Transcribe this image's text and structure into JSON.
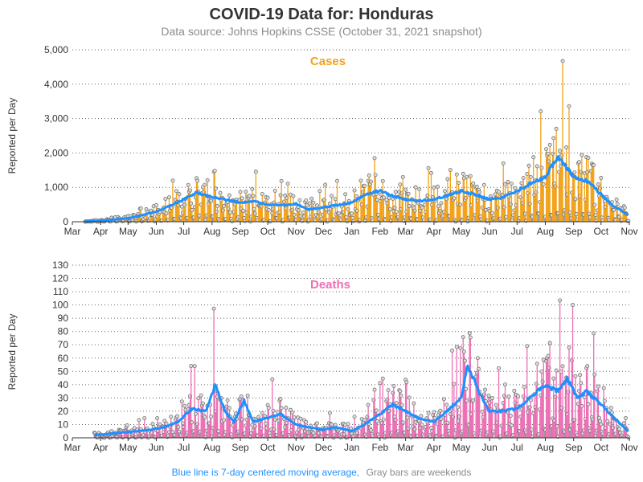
{
  "title": "COVID-19 Data for: Honduras",
  "subtitle": "Data source: Johns Hopkins CSSE (October 31, 2021 snapshot)",
  "footer": {
    "moving_average_note": "Blue line is 7-day centered moving average,",
    "weekend_note": "Gray bars are weekends"
  },
  "colors": {
    "cases": "#f2a21a",
    "deaths": "#ec6fb4",
    "moving_average": "#1e90ff",
    "weekend": "#999999"
  },
  "chart_data": [
    {
      "type": "bar",
      "panel_label": "Cases",
      "ylabel": "Reported per Day",
      "ylim": [
        0,
        5000
      ],
      "yticks": [
        "0",
        "1,000",
        "2,000",
        "3,000",
        "4,000",
        "5,000"
      ],
      "ytick_values": [
        0,
        1000,
        2000,
        3000,
        4000,
        5000
      ],
      "x_range": [
        "2020-03-01",
        "2021-11-01"
      ],
      "xticks": [
        "Mar",
        "Apr",
        "May",
        "Jun",
        "Jul",
        "Aug",
        "Sep",
        "Oct",
        "Nov",
        "Dec",
        "Jan",
        "Feb",
        "Mar",
        "Apr",
        "May",
        "Jun",
        "Jul",
        "Aug",
        "Sep",
        "Oct",
        "Nov"
      ],
      "grid": "horizontal dotted",
      "series": [
        {
          "name": "Blue line is 7-day centered moving average",
          "x": [
            "2020-03-15",
            "2020-04-01",
            "2020-04-15",
            "2020-05-01",
            "2020-05-15",
            "2020-06-01",
            "2020-06-15",
            "2020-07-01",
            "2020-07-15",
            "2020-08-01",
            "2020-08-15",
            "2020-09-01",
            "2020-09-15",
            "2020-10-01",
            "2020-10-15",
            "2020-11-01",
            "2020-11-15",
            "2020-12-01",
            "2020-12-15",
            "2021-01-01",
            "2021-01-15",
            "2021-02-01",
            "2021-02-15",
            "2021-03-01",
            "2021-03-15",
            "2021-04-01",
            "2021-04-15",
            "2021-05-01",
            "2021-05-15",
            "2021-06-01",
            "2021-06-15",
            "2021-07-01",
            "2021-07-15",
            "2021-08-01",
            "2021-08-15",
            "2021-09-01",
            "2021-09-15",
            "2021-10-01",
            "2021-10-15",
            "2021-10-31"
          ],
          "values": [
            5,
            30,
            60,
            100,
            180,
            300,
            450,
            650,
            850,
            700,
            650,
            550,
            600,
            500,
            480,
            520,
            350,
            420,
            480,
            550,
            800,
            900,
            750,
            650,
            600,
            650,
            750,
            900,
            800,
            650,
            700,
            900,
            1100,
            1300,
            1900,
            1300,
            1200,
            800,
            450,
            200
          ]
        }
      ]
    },
    {
      "type": "bar",
      "panel_label": "Deaths",
      "ylabel": "Reported per Day",
      "ylim": [
        0,
        130
      ],
      "yticks": [
        "0",
        "10",
        "20",
        "30",
        "40",
        "50",
        "60",
        "70",
        "80",
        "90",
        "100",
        "110",
        "120",
        "130"
      ],
      "ytick_values": [
        0,
        10,
        20,
        30,
        40,
        50,
        60,
        70,
        80,
        90,
        100,
        110,
        120,
        130
      ],
      "x_range": [
        "2020-03-01",
        "2021-11-01"
      ],
      "xticks": [
        "Mar",
        "Apr",
        "May",
        "Jun",
        "Jul",
        "Aug",
        "Sep",
        "Oct",
        "Nov",
        "Dec",
        "Jan",
        "Feb",
        "Mar",
        "Apr",
        "May",
        "Jun",
        "Jul",
        "Aug",
        "Sep",
        "Oct",
        "Nov"
      ],
      "grid": "horizontal dotted",
      "series": [
        {
          "name": "Blue line is 7-day centered moving average",
          "x": [
            "2020-03-25",
            "2020-04-10",
            "2020-04-25",
            "2020-05-10",
            "2020-05-25",
            "2020-06-10",
            "2020-06-25",
            "2020-07-10",
            "2020-07-25",
            "2020-08-05",
            "2020-08-15",
            "2020-08-25",
            "2020-09-05",
            "2020-09-15",
            "2020-10-01",
            "2020-10-15",
            "2020-11-01",
            "2020-11-15",
            "2020-12-01",
            "2020-12-15",
            "2021-01-01",
            "2021-01-15",
            "2021-02-01",
            "2021-02-15",
            "2021-03-01",
            "2021-03-15",
            "2021-04-01",
            "2021-04-15",
            "2021-05-01",
            "2021-05-08",
            "2021-05-20",
            "2021-06-01",
            "2021-06-15",
            "2021-07-01",
            "2021-07-15",
            "2021-08-01",
            "2021-08-15",
            "2021-08-25",
            "2021-09-05",
            "2021-09-15",
            "2021-10-01",
            "2021-10-15",
            "2021-10-31"
          ],
          "values": [
            2,
            3,
            4,
            5,
            6,
            8,
            12,
            22,
            20,
            40,
            20,
            12,
            28,
            12,
            15,
            18,
            10,
            8,
            6,
            8,
            5,
            10,
            18,
            25,
            20,
            15,
            12,
            20,
            30,
            55,
            35,
            20,
            20,
            22,
            30,
            40,
            35,
            45,
            30,
            35,
            25,
            15,
            5
          ]
        }
      ]
    }
  ]
}
